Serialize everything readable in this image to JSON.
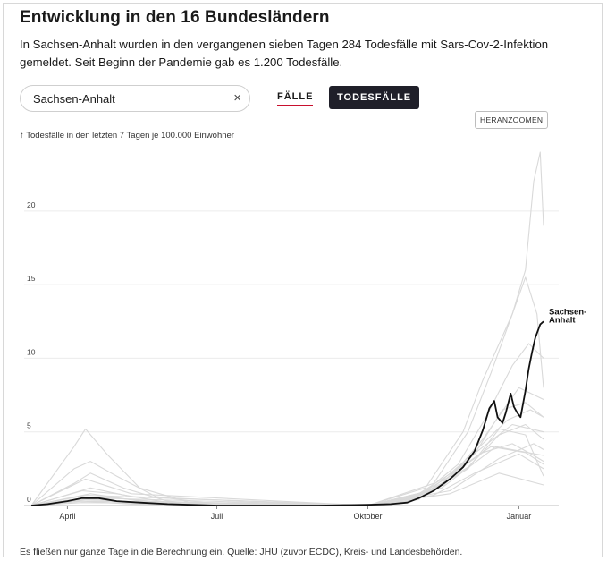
{
  "header": {
    "title": "Entwicklung in den 16 Bundesländern",
    "lead": "In Sachsen-Anhalt wurden in den vergangenen sieben Tagen 284 Todesfälle mit Sars-Cov-2-Infektion gemeldet. Seit Beginn der Pandemie gab es 1.200 Todesfälle."
  },
  "controls": {
    "search_value": "Sachsen-Anhalt",
    "clear_glyph": "×",
    "tab_cases": "FÄLLE",
    "tab_deaths": "TODESFÄLLE",
    "active_tab": "TODESFÄLLE",
    "zoom_label": "HERANZOOMEN"
  },
  "chart_note": "↑ Todesfälle in den letzten 7 Tagen je 100.000 Einwohner",
  "footer": "Es fließen nur ganze Tage in die Berechnung ein. Quelle: JHU (zuvor ECDC), Kreis- und Landesbehörden.",
  "chart_data": {
    "type": "line",
    "ylabel": "Todesfälle in den letzten 7 Tagen je 100.000 Einwohner",
    "ylim": [
      0,
      24
    ],
    "yticks": [
      0,
      5,
      10,
      15,
      20
    ],
    "grid": true,
    "x_ticks": [
      {
        "label": "April",
        "date": "2020-04-01"
      },
      {
        "label": "Juli",
        "date": "2020-07-01"
      },
      {
        "label": "Oktober",
        "date": "2020-10-01"
      },
      {
        "label": "Januar",
        "date": "2021-01-01"
      }
    ],
    "highlight_color": "#111111",
    "background_color": "#d9d9d9",
    "highlight_label": "Sachsen-Anhalt",
    "highlight": {
      "name": "Sachsen-Anhalt",
      "points": [
        [
          "2020-03-10",
          0.0
        ],
        [
          "2020-03-20",
          0.1
        ],
        [
          "2020-04-01",
          0.3
        ],
        [
          "2020-04-10",
          0.5
        ],
        [
          "2020-04-20",
          0.5
        ],
        [
          "2020-05-01",
          0.3
        ],
        [
          "2020-05-15",
          0.2
        ],
        [
          "2020-06-01",
          0.1
        ],
        [
          "2020-06-15",
          0.05
        ],
        [
          "2020-07-01",
          0.0
        ],
        [
          "2020-08-01",
          0.0
        ],
        [
          "2020-09-01",
          0.0
        ],
        [
          "2020-10-01",
          0.05
        ],
        [
          "2020-10-15",
          0.1
        ],
        [
          "2020-10-25",
          0.2
        ],
        [
          "2020-11-01",
          0.5
        ],
        [
          "2020-11-10",
          1.0
        ],
        [
          "2020-11-20",
          1.8
        ],
        [
          "2020-11-28",
          2.6
        ],
        [
          "2020-12-05",
          3.7
        ],
        [
          "2020-12-10",
          5.1
        ],
        [
          "2020-12-14",
          6.6
        ],
        [
          "2020-12-17",
          7.1
        ],
        [
          "2020-12-19",
          6.0
        ],
        [
          "2020-12-22",
          5.6
        ],
        [
          "2020-12-24",
          6.3
        ],
        [
          "2020-12-27",
          7.6
        ],
        [
          "2020-12-29",
          6.7
        ],
        [
          "2020-12-31",
          6.3
        ],
        [
          "2021-01-02",
          6.0
        ],
        [
          "2021-01-05",
          7.8
        ],
        [
          "2021-01-07",
          9.3
        ],
        [
          "2021-01-09",
          10.4
        ],
        [
          "2021-01-11",
          11.4
        ],
        [
          "2021-01-14",
          12.3
        ],
        [
          "2021-01-16",
          12.5
        ]
      ]
    },
    "series": [
      {
        "name": "",
        "points": [
          [
            "2020-03-10",
            0
          ],
          [
            "2020-04-05",
            4.0
          ],
          [
            "2020-04-12",
            5.2
          ],
          [
            "2020-04-25",
            3.5
          ],
          [
            "2020-05-15",
            1.2
          ],
          [
            "2020-06-15",
            0.2
          ],
          [
            "2020-07-15",
            0
          ],
          [
            "2020-10-01",
            0
          ],
          [
            "2020-10-20",
            0.3
          ],
          [
            "2020-11-10",
            1.2
          ],
          [
            "2020-12-01",
            2.6
          ],
          [
            "2020-12-20",
            4.8
          ],
          [
            "2021-01-05",
            5.5
          ],
          [
            "2021-01-16",
            4.5
          ]
        ]
      },
      {
        "name": "",
        "points": [
          [
            "2020-03-10",
            0
          ],
          [
            "2020-04-05",
            2.5
          ],
          [
            "2020-04-15",
            3.0
          ],
          [
            "2020-05-01",
            2.0
          ],
          [
            "2020-05-25",
            0.6
          ],
          [
            "2020-07-01",
            0.1
          ],
          [
            "2020-10-01",
            0
          ],
          [
            "2020-10-25",
            0.3
          ],
          [
            "2020-11-15",
            1.5
          ],
          [
            "2020-12-10",
            4.2
          ],
          [
            "2020-12-25",
            5.8
          ],
          [
            "2021-01-08",
            6.5
          ],
          [
            "2021-01-16",
            6.0
          ]
        ]
      },
      {
        "name": "",
        "points": [
          [
            "2020-03-10",
            0
          ],
          [
            "2020-04-05",
            1.5
          ],
          [
            "2020-04-15",
            2.2
          ],
          [
            "2020-05-05",
            1.2
          ],
          [
            "2020-06-01",
            0.3
          ],
          [
            "2020-07-01",
            0
          ],
          [
            "2020-10-01",
            0
          ],
          [
            "2020-11-01",
            0.8
          ],
          [
            "2020-11-25",
            2.5
          ],
          [
            "2020-12-15",
            4.0
          ],
          [
            "2021-01-05",
            3.6
          ],
          [
            "2021-01-16",
            2.8
          ]
        ]
      },
      {
        "name": "",
        "points": [
          [
            "2020-03-10",
            0
          ],
          [
            "2020-04-10",
            1.0
          ],
          [
            "2020-05-01",
            0.8
          ],
          [
            "2020-06-01",
            0.2
          ],
          [
            "2020-10-01",
            0
          ],
          [
            "2020-10-30",
            0.6
          ],
          [
            "2020-11-20",
            2.0
          ],
          [
            "2020-12-10",
            3.6
          ],
          [
            "2020-12-28",
            4.2
          ],
          [
            "2021-01-10",
            3.4
          ],
          [
            "2021-01-16",
            3.0
          ]
        ]
      },
      {
        "name": "",
        "points": [
          [
            "2020-03-10",
            0
          ],
          [
            "2020-04-08",
            0.6
          ],
          [
            "2020-05-01",
            0.5
          ],
          [
            "2020-06-10",
            0.1
          ],
          [
            "2020-10-01",
            0
          ],
          [
            "2020-11-01",
            0.6
          ],
          [
            "2020-11-25",
            2.8
          ],
          [
            "2020-12-12",
            6.0
          ],
          [
            "2020-12-28",
            9.5
          ],
          [
            "2021-01-07",
            11.0
          ],
          [
            "2021-01-16",
            10.0
          ]
        ]
      },
      {
        "name": "",
        "points": [
          [
            "2020-03-10",
            0
          ],
          [
            "2020-04-10",
            0.4
          ],
          [
            "2020-05-05",
            0.3
          ],
          [
            "2020-06-10",
            0.1
          ],
          [
            "2020-10-01",
            0
          ],
          [
            "2020-11-05",
            1.2
          ],
          [
            "2020-11-28",
            5.0
          ],
          [
            "2020-12-10",
            8.5
          ],
          [
            "2020-12-20",
            11.0
          ],
          [
            "2020-12-28",
            13.0
          ],
          [
            "2021-01-05",
            16.0
          ],
          [
            "2021-01-10",
            22.0
          ],
          [
            "2021-01-14",
            24.0
          ],
          [
            "2021-01-16",
            19.0
          ]
        ]
      },
      {
        "name": "",
        "points": [
          [
            "2020-03-10",
            0
          ],
          [
            "2020-04-10",
            0.5
          ],
          [
            "2020-05-10",
            0.2
          ],
          [
            "2020-10-01",
            0
          ],
          [
            "2020-11-10",
            1.5
          ],
          [
            "2020-12-01",
            5.0
          ],
          [
            "2020-12-15",
            9.0
          ],
          [
            "2020-12-28",
            13.0
          ],
          [
            "2021-01-05",
            15.5
          ],
          [
            "2021-01-12",
            13.0
          ],
          [
            "2021-01-16",
            8.0
          ]
        ]
      },
      {
        "name": "",
        "points": [
          [
            "2020-03-10",
            0
          ],
          [
            "2020-04-10",
            0.3
          ],
          [
            "2020-05-10",
            0.1
          ],
          [
            "2020-10-01",
            0
          ],
          [
            "2020-11-05",
            0.8
          ],
          [
            "2020-12-01",
            2.5
          ],
          [
            "2020-12-20",
            5.2
          ],
          [
            "2021-01-05",
            4.8
          ],
          [
            "2021-01-16",
            2.0
          ]
        ]
      },
      {
        "name": "",
        "points": [
          [
            "2020-03-10",
            0
          ],
          [
            "2020-04-15",
            0.8
          ],
          [
            "2020-05-15",
            0.3
          ],
          [
            "2020-10-01",
            0
          ],
          [
            "2020-11-10",
            1.0
          ],
          [
            "2020-12-05",
            3.5
          ],
          [
            "2020-12-22",
            6.5
          ],
          [
            "2021-01-05",
            7.0
          ],
          [
            "2021-01-16",
            6.0
          ]
        ]
      },
      {
        "name": "",
        "points": [
          [
            "2020-03-10",
            0
          ],
          [
            "2020-04-20",
            0.5
          ],
          [
            "2020-10-01",
            0
          ],
          [
            "2020-11-15",
            1.2
          ],
          [
            "2020-12-10",
            4.5
          ],
          [
            "2021-01-01",
            8.0
          ],
          [
            "2021-01-16",
            7.2
          ]
        ]
      },
      {
        "name": "",
        "points": [
          [
            "2020-03-10",
            0
          ],
          [
            "2020-04-15",
            1.2
          ],
          [
            "2020-05-10",
            0.6
          ],
          [
            "2020-10-01",
            0
          ],
          [
            "2020-11-10",
            0.7
          ],
          [
            "2020-12-05",
            2.2
          ],
          [
            "2021-01-01",
            3.5
          ],
          [
            "2021-01-16",
            2.5
          ]
        ]
      },
      {
        "name": "",
        "points": [
          [
            "2020-03-10",
            0
          ],
          [
            "2020-04-10",
            0.2
          ],
          [
            "2020-10-01",
            0
          ],
          [
            "2020-11-20",
            1.0
          ],
          [
            "2020-12-20",
            3.2
          ],
          [
            "2021-01-10",
            4.2
          ],
          [
            "2021-01-16",
            3.8
          ]
        ]
      },
      {
        "name": "",
        "points": [
          [
            "2020-03-10",
            0
          ],
          [
            "2020-04-12",
            0.7
          ],
          [
            "2020-10-01",
            0
          ],
          [
            "2020-11-01",
            0.4
          ],
          [
            "2020-12-01",
            3.2
          ],
          [
            "2020-12-28",
            5.5
          ],
          [
            "2021-01-16",
            5.0
          ]
        ]
      },
      {
        "name": "",
        "points": [
          [
            "2020-03-10",
            0
          ],
          [
            "2020-04-12",
            1.8
          ],
          [
            "2020-05-10",
            0.8
          ],
          [
            "2020-10-01",
            0
          ],
          [
            "2020-11-15",
            1.2
          ],
          [
            "2020-12-18",
            4.0
          ],
          [
            "2021-01-16",
            3.4
          ]
        ]
      },
      {
        "name": "",
        "points": [
          [
            "2020-03-10",
            0
          ],
          [
            "2020-04-10",
            0.3
          ],
          [
            "2020-10-01",
            0
          ],
          [
            "2020-11-20",
            0.8
          ],
          [
            "2020-12-20",
            2.2
          ],
          [
            "2021-01-16",
            1.4
          ]
        ]
      }
    ]
  }
}
